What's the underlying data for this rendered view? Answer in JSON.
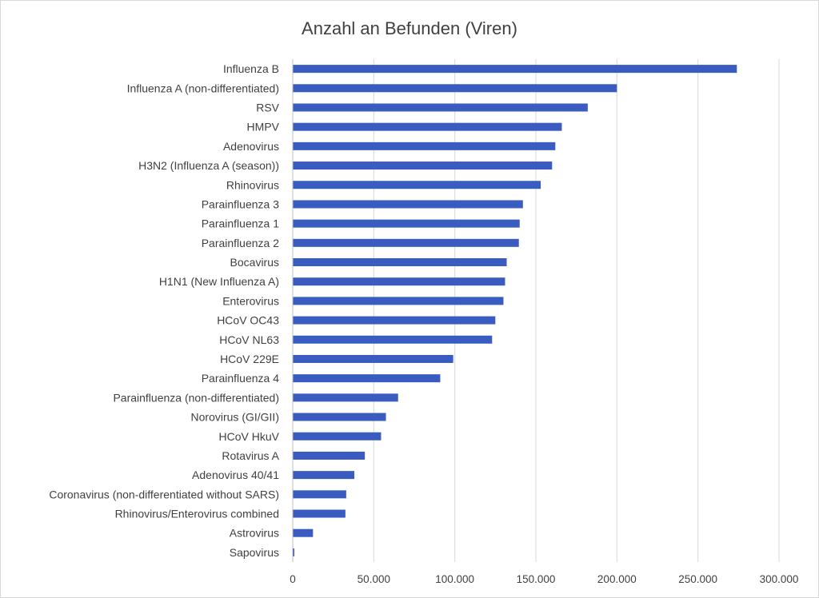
{
  "chart_data": {
    "type": "bar",
    "orientation": "horizontal",
    "title": "Anzahl an Befunden (Viren)",
    "xlabel": "",
    "ylabel": "",
    "xlim": [
      0,
      300000
    ],
    "x_ticks": [
      0,
      50000,
      100000,
      150000,
      200000,
      250000,
      300000
    ],
    "x_tick_labels": [
      "0",
      "50.000",
      "100.000",
      "150.000",
      "200.000",
      "250.000",
      "300.000"
    ],
    "grid": true,
    "legend": "none",
    "bar_color": "#3a5bbf",
    "categories": [
      "Influenza B",
      "Influenza A (non-differentiated)",
      "RSV",
      "HMPV",
      "Adenovirus",
      "H3N2 (Influenza A (season))",
      "Rhinovirus",
      "Parainfluenza 3",
      "Parainfluenza 1",
      "Parainfluenza 2",
      "Bocavirus",
      "H1N1 (New Influenza A)",
      "Enterovirus",
      "HCoV OC43",
      "HCoV NL63",
      "HCoV 229E",
      "Parainfluenza 4",
      "Parainfluenza (non-differentiated)",
      "Norovirus (GI/GII)",
      "HCoV HkuV",
      "Rotavirus A",
      "Adenovirus 40/41",
      "Coronavirus (non-differentiated without SARS)",
      "Rhinovirus/Enterovirus combined",
      "Astrovirus",
      "Sapovirus"
    ],
    "values": [
      274000,
      200000,
      182000,
      166000,
      162000,
      160000,
      153000,
      142000,
      140000,
      139500,
      132000,
      131000,
      130000,
      125000,
      123000,
      99000,
      91000,
      65000,
      57500,
      54500,
      44500,
      38000,
      33000,
      32500,
      12500,
      1000
    ]
  }
}
